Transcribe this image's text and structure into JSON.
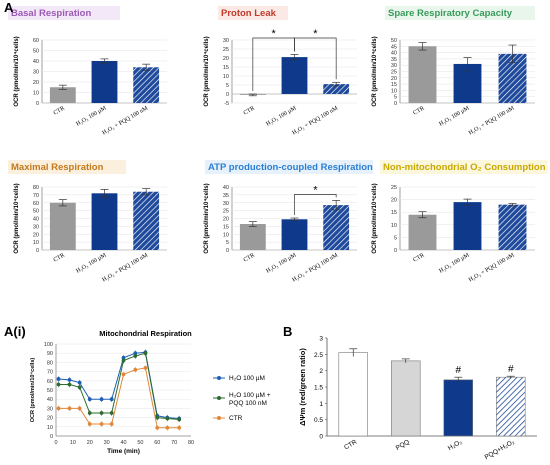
{
  "panel_labels": {
    "a": "A",
    "ai": "A(i)",
    "b": "B"
  },
  "colors": {
    "ctr": "#9a9a9a",
    "h2o2": "#0f3a8c",
    "hatch": "#1f4a9c",
    "line_h2o2": "#1f5fb4",
    "line_combo": "#2e6b2e",
    "line_ctr": "#e0883a",
    "pqq_bar": "#d6d6d6",
    "b_ctr": "#ffffff"
  },
  "chart_data": [
    {
      "id": "basal",
      "type": "bar",
      "title": "Basal Respiration",
      "title_color": "#9b59b6",
      "title_bg": "#f3e8f8",
      "ylabel": "OCR (pmol/min/10⁴cells)",
      "ylim": [
        0,
        60
      ],
      "yticks": [
        0,
        10,
        20,
        30,
        40,
        50,
        60
      ],
      "categories": [
        "CTR",
        "H₂O₂ 100 µM",
        "H₂O₂ + PQQ 100 nM"
      ],
      "values": [
        15,
        40,
        34
      ],
      "errors": [
        2,
        2,
        3
      ],
      "significance": []
    },
    {
      "id": "leak",
      "type": "bar",
      "title": "Proton Leak",
      "title_color": "#c0392b",
      "title_bg": "#fbe9e6",
      "ylabel": "OCR (pmol/min/10⁴cells)",
      "ylim": [
        -5,
        30
      ],
      "yticks": [
        -5,
        0,
        5,
        10,
        15,
        20,
        25,
        30
      ],
      "categories": [
        "CTR",
        "H₂O₂ 100 µM",
        "H₂O₂ + PQQ 100 nM"
      ],
      "values": [
        -0.5,
        20.5,
        5.5
      ],
      "errors": [
        0.5,
        1.5,
        1
      ],
      "significance": [
        {
          "from": 0,
          "to": 1,
          "label": "*"
        },
        {
          "from": 1,
          "to": 2,
          "label": "*"
        }
      ]
    },
    {
      "id": "spare",
      "type": "bar",
      "title": "Spare Respiratory Capacity",
      "title_color": "#3a9a5b",
      "title_bg": "#e8f6ec",
      "ylabel": "OCR (pmol/min/10⁴cells)",
      "ylim": [
        0,
        50
      ],
      "yticks": [
        0,
        5,
        10,
        15,
        20,
        25,
        30,
        35,
        40,
        45,
        50
      ],
      "categories": [
        "CTR",
        "H₂O₂ 100 µM",
        "H₂O₂ + PQQ 100 nM"
      ],
      "values": [
        45,
        31,
        39
      ],
      "errors": [
        3,
        5,
        7
      ],
      "significance": []
    },
    {
      "id": "maximal",
      "type": "bar",
      "title": "Maximal Respiration",
      "title_color": "#c47a1c",
      "title_bg": "#fbf0dd",
      "ylabel": "OCR (pmol/min/10⁴cells)",
      "ylim": [
        0,
        80
      ],
      "yticks": [
        0,
        10,
        20,
        30,
        40,
        50,
        60,
        70,
        80
      ],
      "categories": [
        "CTR",
        "H₂O₂ 100 µM",
        "H₂O₂ + PQQ 100 nM"
      ],
      "values": [
        60,
        72,
        74
      ],
      "errors": [
        4,
        5,
        4
      ],
      "significance": []
    },
    {
      "id": "atp",
      "type": "bar",
      "title": "ATP production-coupled Respiration",
      "title_color": "#2a7fd4",
      "title_bg": "#e6f1fb",
      "ylabel": "OCR (pmol/min/10⁴cells)",
      "ylim": [
        0,
        40
      ],
      "yticks": [
        0,
        5,
        10,
        15,
        20,
        25,
        30,
        35,
        40
      ],
      "categories": [
        "CTR",
        "H₂O₂ 100 µM",
        "H₂O₂ + PQQ 100 nM"
      ],
      "values": [
        16.5,
        19.5,
        28.5
      ],
      "errors": [
        1.5,
        0.8,
        3
      ],
      "significance": [
        {
          "from": 1,
          "to": 2,
          "label": "*"
        }
      ]
    },
    {
      "id": "nonmito",
      "type": "bar",
      "title": "Non-mitochondrial O₂ Consumption",
      "title_color": "#c9a800",
      "title_bg": "#fbf7dc",
      "ylabel": "OCR (pmol/min/10⁴cells)",
      "ylim": [
        0,
        25
      ],
      "yticks": [
        0,
        5,
        10,
        15,
        20,
        25
      ],
      "categories": [
        "CTR",
        "H₂O₂ 100 µM",
        "H₂O₂ + PQQ 100 nM"
      ],
      "values": [
        14,
        19,
        18
      ],
      "errors": [
        1.2,
        1.2,
        0.5
      ],
      "significance": []
    },
    {
      "id": "mito",
      "type": "line",
      "title": "Mitochondrial Respiration",
      "xlabel": "Time (min)",
      "ylabel": "OCR (pmol/min/10⁴cells)",
      "xlim": [
        0,
        80
      ],
      "xticks": [
        0,
        10,
        20,
        30,
        40,
        50,
        60,
        70,
        80
      ],
      "ylim": [
        0,
        100
      ],
      "yticks": [
        0,
        10,
        20,
        30,
        40,
        50,
        60,
        70,
        80,
        90,
        100
      ],
      "x": [
        1.5,
        8,
        14,
        20,
        27,
        33,
        40,
        47,
        53,
        60,
        66,
        73
      ],
      "series": [
        {
          "name": "H₂O 100 µM",
          "values": [
            62,
            61,
            58,
            40,
            40,
            40,
            85,
            90,
            91,
            22,
            20,
            19
          ],
          "error": 3
        },
        {
          "name": "H₂O 100 µM + PQQ 100 nM",
          "values": [
            56,
            56,
            53,
            25,
            25,
            25,
            82,
            87,
            90,
            20,
            19,
            18
          ],
          "error": 3
        },
        {
          "name": "CTR",
          "values": [
            30,
            30,
            30,
            13,
            13,
            13,
            67,
            72,
            74,
            9,
            9,
            9
          ],
          "error": 3
        }
      ]
    },
    {
      "id": "b",
      "type": "bar",
      "title": "",
      "ylabel": "ΔΨm (red/green ratio)",
      "ylim": [
        0,
        3
      ],
      "yticks": [
        0,
        0.5,
        1,
        1.5,
        2,
        2.5,
        3
      ],
      "ytick_labels": [
        "0",
        "0.5",
        "1",
        "1.5",
        "2",
        "2.5",
        "3"
      ],
      "categories": [
        "CTR",
        "PQQ",
        "H₂O₂",
        "PQQ+H₂O₂"
      ],
      "values": [
        2.55,
        2.3,
        1.72,
        1.8
      ],
      "errors": [
        0.12,
        0.06,
        0.08,
        0.03
      ],
      "marks": [
        "",
        "",
        "#",
        "#"
      ]
    }
  ]
}
